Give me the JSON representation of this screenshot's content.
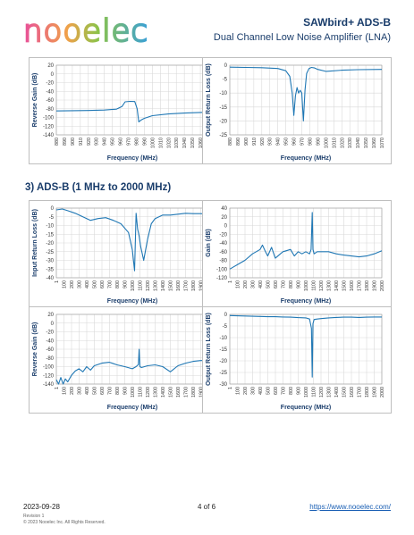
{
  "header": {
    "logo_text": "nooelec",
    "title": "SAWbird+ ADS-B",
    "subtitle": "Dual Channel Low Noise Amplifier (LNA)"
  },
  "section_heading": "3) ADS-B (1 MHz to 2000 MHz)",
  "footer": {
    "date": "2023-09-28",
    "page": "4 of 6",
    "url": "https://www.nooelec.com/",
    "revision": "Revision 1",
    "copyright": "© 2023 Nooelec Inc. All Rights Reserved."
  },
  "colors": {
    "trace": "#1f77b4",
    "heading": "#1a3d6b",
    "link": "#1a5fb4"
  },
  "chart_data": [
    {
      "id": "c1",
      "type": "line",
      "xlabel": "Frequency (MHz)",
      "ylabel": "Reverse Gain (dB)",
      "xticks": [
        "880",
        "890",
        "900",
        "910",
        "920",
        "930",
        "940",
        "950",
        "960",
        "970",
        "980",
        "990",
        "1000",
        "1010",
        "1020",
        "1030",
        "1040",
        "1050",
        "1060",
        "1070"
      ],
      "xlim": [
        880,
        1070
      ],
      "yticks": [
        20,
        0,
        -20,
        -40,
        -60,
        -80,
        -100,
        -120,
        -140
      ],
      "ylim": [
        -140,
        20
      ],
      "x": [
        880,
        900,
        920,
        940,
        955,
        962,
        966,
        972,
        978,
        981,
        983,
        986,
        990,
        1000,
        1020,
        1040,
        1060,
        1070
      ],
      "y": [
        -85,
        -84.5,
        -84,
        -83,
        -81,
        -75,
        -64,
        -63,
        -63.5,
        -80,
        -110,
        -106,
        -102,
        -96,
        -92,
        -90,
        -88.5,
        -88
      ]
    },
    {
      "id": "c2",
      "type": "line",
      "xlabel": "Frequency (MHz)",
      "ylabel": "Output Return Loss (dB)",
      "xticks": [
        "880",
        "890",
        "900",
        "910",
        "920",
        "930",
        "940",
        "950",
        "960",
        "970",
        "980",
        "990",
        "1000",
        "1010",
        "1020",
        "1030",
        "1040",
        "1050",
        "1060",
        "1070"
      ],
      "xlim": [
        880,
        1070
      ],
      "yticks": [
        0,
        -5,
        -10,
        -15,
        -20,
        -25
      ],
      "ylim": [
        -25,
        0
      ],
      "x": [
        880,
        900,
        920,
        940,
        950,
        955,
        958,
        960,
        962,
        964,
        966,
        968,
        970,
        972,
        974,
        976,
        979,
        982,
        986,
        990,
        1000,
        1020,
        1040,
        1070
      ],
      "y": [
        -0.7,
        -0.8,
        -0.9,
        -1.2,
        -2,
        -4,
        -10,
        -18,
        -11,
        -8,
        -10,
        -9,
        -10,
        -20,
        -9,
        -3,
        -1.2,
        -0.8,
        -1,
        -1.5,
        -2.2,
        -1.8,
        -1.6,
        -1.5
      ]
    },
    {
      "id": "c3",
      "type": "line",
      "xlabel": "Frequency (MHz)",
      "ylabel": "Input Return Loss (dB)",
      "xticks": [
        "1",
        "100",
        "200",
        "300",
        "400",
        "500",
        "600",
        "700",
        "800",
        "900",
        "1000",
        "1100",
        "1200",
        "1300",
        "1400",
        "1500",
        "1600",
        "1700",
        "1800",
        "1900",
        "2000"
      ],
      "xlim": [
        1,
        2000
      ],
      "yticks": [
        0,
        -5,
        -10,
        -15,
        -20,
        -25,
        -30,
        -35,
        -40
      ],
      "ylim": [
        -40,
        0
      ],
      "x": [
        1,
        80,
        150,
        250,
        350,
        450,
        550,
        650,
        750,
        850,
        950,
        1000,
        1030,
        1050,
        1070,
        1090,
        1110,
        1150,
        1200,
        1250,
        1300,
        1400,
        1500,
        1600,
        1700,
        1800,
        1900,
        2000
      ],
      "y": [
        -1,
        -0.5,
        -1.5,
        -3,
        -5,
        -7,
        -6,
        -5.5,
        -7,
        -9,
        -14,
        -24,
        -36,
        -3,
        -12,
        -16,
        -22,
        -30,
        -18,
        -9,
        -6,
        -4,
        -4,
        -3.5,
        -3,
        -3.2,
        -3.2,
        -3.5
      ]
    },
    {
      "id": "c4",
      "type": "line",
      "xlabel": "Frequency (MHz)",
      "ylabel": "Gain (dB)",
      "xticks": [
        "1",
        "100",
        "200",
        "300",
        "400",
        "500",
        "600",
        "700",
        "800",
        "900",
        "1000",
        "1100",
        "1200",
        "1300",
        "1400",
        "1500",
        "1600",
        "1700",
        "1800",
        "1900",
        "2000"
      ],
      "xlim": [
        1,
        2000
      ],
      "yticks": [
        40,
        20,
        0,
        -20,
        -40,
        -60,
        -80,
        -100,
        -120
      ],
      "ylim": [
        -120,
        40
      ],
      "x": [
        1,
        50,
        100,
        150,
        200,
        300,
        400,
        430,
        470,
        500,
        550,
        600,
        700,
        800,
        850,
        900,
        950,
        1000,
        1050,
        1070,
        1085,
        1095,
        1110,
        1150,
        1200,
        1300,
        1400,
        1500,
        1600,
        1700,
        1800,
        1900,
        2000
      ],
      "y": [
        -100,
        -95,
        -90,
        -85,
        -80,
        -65,
        -55,
        -45,
        -60,
        -70,
        -50,
        -75,
        -60,
        -55,
        -70,
        -60,
        -65,
        -60,
        -65,
        -55,
        30,
        -55,
        -65,
        -60,
        -60,
        -60,
        -65,
        -68,
        -70,
        -72,
        -70,
        -65,
        -58
      ]
    },
    {
      "id": "c5",
      "type": "line",
      "xlabel": "Frequency (MHz)",
      "ylabel": "Reverse Gain (dB)",
      "xticks": [
        "1",
        "100",
        "200",
        "300",
        "400",
        "500",
        "600",
        "700",
        "800",
        "900",
        "1000",
        "1100",
        "1200",
        "1300",
        "1400",
        "1500",
        "1600",
        "1700",
        "1800",
        "1900",
        "2000"
      ],
      "xlim": [
        1,
        2000
      ],
      "yticks": [
        20,
        0,
        -20,
        -40,
        -60,
        -80,
        -100,
        -120,
        -140
      ],
      "ylim": [
        -140,
        20
      ],
      "x": [
        1,
        30,
        60,
        90,
        120,
        150,
        200,
        250,
        300,
        350,
        400,
        450,
        500,
        600,
        700,
        800,
        900,
        1000,
        1050,
        1080,
        1090,
        1100,
        1120,
        1200,
        1300,
        1400,
        1500,
        1600,
        1700,
        1800,
        1900,
        2000
      ],
      "y": [
        -130,
        -140,
        -125,
        -140,
        -128,
        -135,
        -120,
        -110,
        -105,
        -112,
        -100,
        -108,
        -98,
        -92,
        -90,
        -96,
        -100,
        -105,
        -100,
        -95,
        -60,
        -100,
        -102,
        -98,
        -96,
        -100,
        -112,
        -98,
        -92,
        -88,
        -86,
        -86
      ]
    },
    {
      "id": "c6",
      "type": "line",
      "xlabel": "Frequency (MHz)",
      "ylabel": "Output Return Loss (dB)",
      "xticks": [
        "1",
        "100",
        "200",
        "300",
        "400",
        "500",
        "600",
        "700",
        "800",
        "900",
        "1000",
        "1100",
        "1200",
        "1300",
        "1400",
        "1500",
        "1600",
        "1700",
        "1800",
        "1900",
        "2000"
      ],
      "xlim": [
        1,
        2000
      ],
      "yticks": [
        0,
        -5,
        -10,
        -15,
        -20,
        -25,
        -30
      ],
      "ylim": [
        -30,
        0
      ],
      "x": [
        1,
        100,
        200,
        300,
        400,
        500,
        600,
        700,
        800,
        900,
        1000,
        1050,
        1075,
        1085,
        1095,
        1110,
        1150,
        1200,
        1300,
        1400,
        1500,
        1600,
        1700,
        1800,
        1900,
        2000
      ],
      "y": [
        -0.5,
        -0.6,
        -0.7,
        -0.8,
        -0.9,
        -1,
        -1,
        -1.1,
        -1.2,
        -1.4,
        -1.5,
        -2,
        -6,
        -27,
        -4,
        -2.2,
        -2,
        -1.8,
        -1.5,
        -1.3,
        -1.2,
        -1.2,
        -1.3,
        -1.2,
        -1.1,
        -1.1
      ]
    }
  ]
}
